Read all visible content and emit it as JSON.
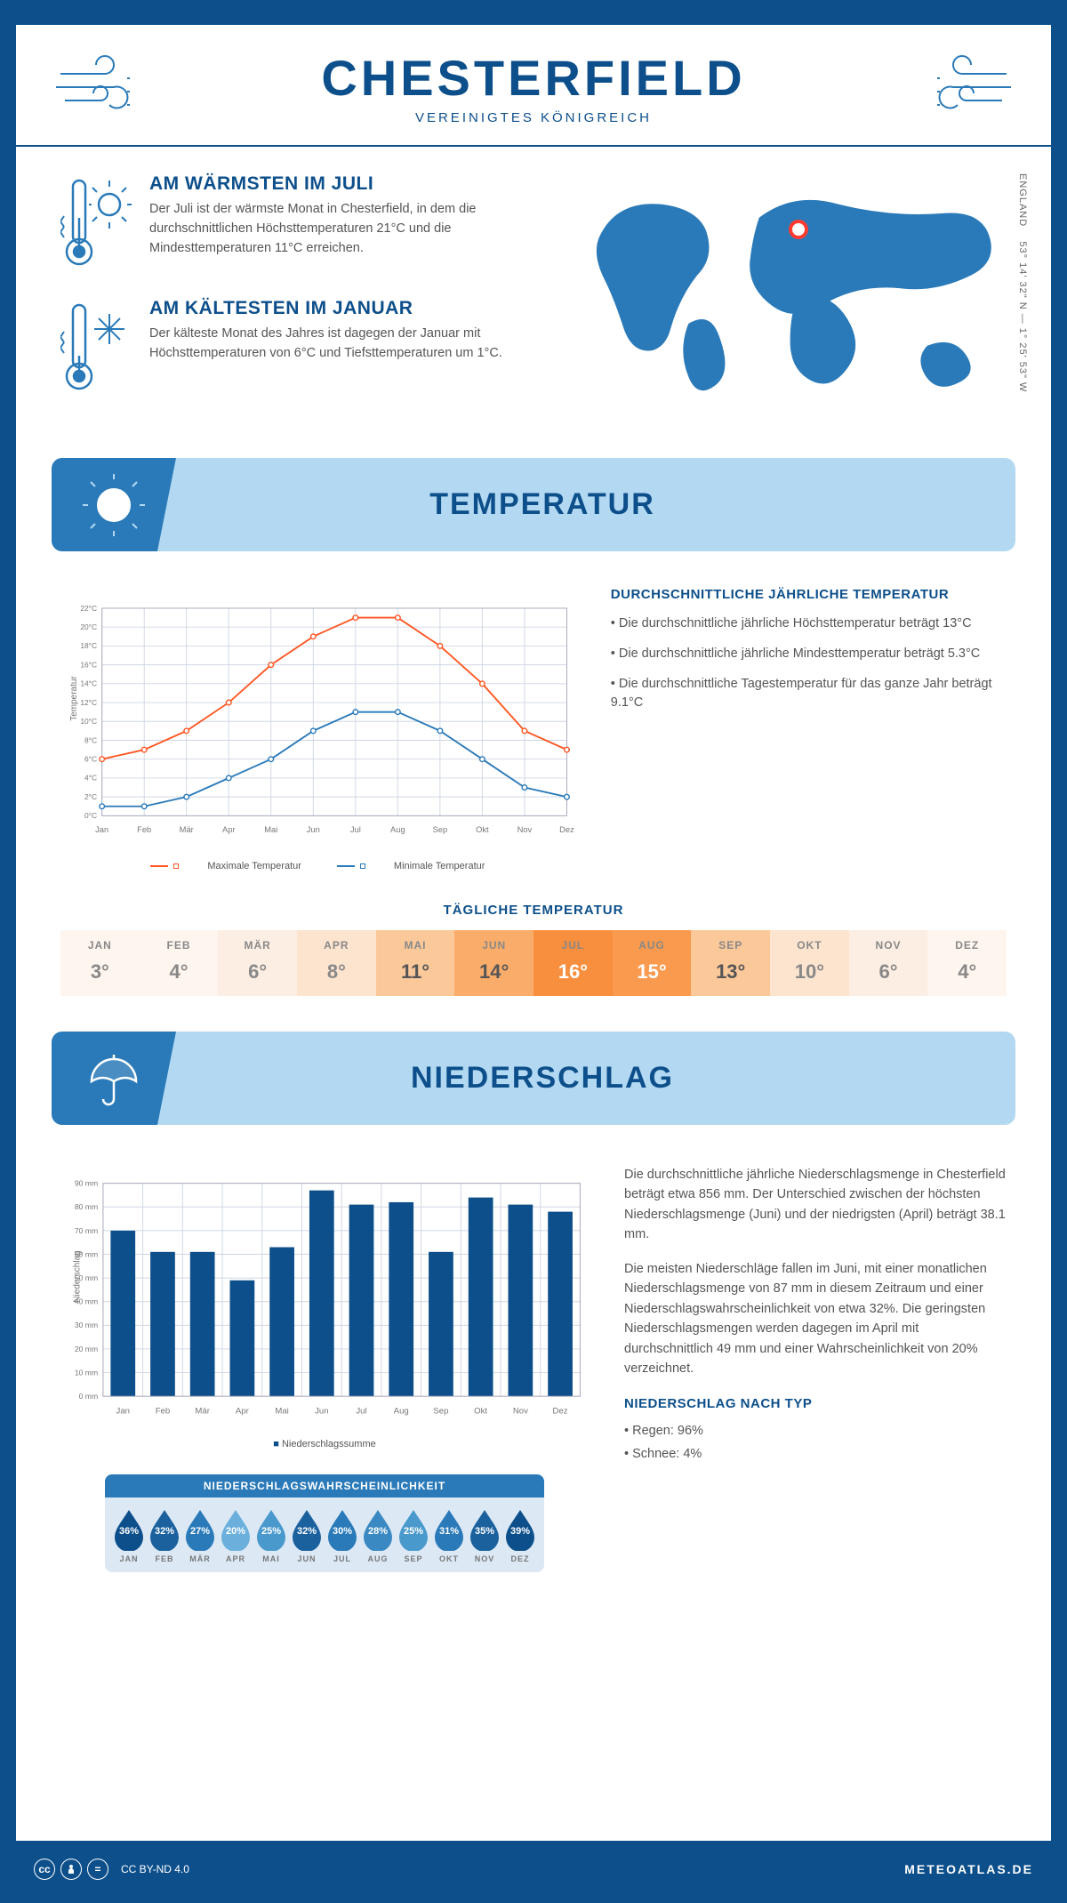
{
  "header": {
    "title": "CHESTERFIELD",
    "subtitle": "VEREINIGTES KÖNIGREICH"
  },
  "coords": {
    "text": "53° 14' 32\" N — 1° 25' 53\" W",
    "region": "ENGLAND"
  },
  "facts": {
    "warm": {
      "title": "AM WÄRMSTEN IM JULI",
      "text": "Der Juli ist der wärmste Monat in Chesterfield, in dem die durchschnittlichen Höchsttemperaturen 21°C und die Mindesttemperaturen 11°C erreichen."
    },
    "cold": {
      "title": "AM KÄLTESTEN IM JANUAR",
      "text": "Der kälteste Monat des Jahres ist dagegen der Januar mit Höchsttemperaturen von 6°C und Tiefsttemperaturen um 1°C."
    }
  },
  "sections": {
    "temp": "TEMPERATUR",
    "precip": "NIEDERSCHLAG"
  },
  "months_short": [
    "Jan",
    "Feb",
    "Mär",
    "Apr",
    "Mai",
    "Jun",
    "Jul",
    "Aug",
    "Sep",
    "Okt",
    "Nov",
    "Dez"
  ],
  "months_caps": [
    "JAN",
    "FEB",
    "MÄR",
    "APR",
    "MAI",
    "JUN",
    "JUL",
    "AUG",
    "SEP",
    "OKT",
    "NOV",
    "DEZ"
  ],
  "temp_chart": {
    "type": "line",
    "y_label": "Temperatur",
    "ylim": [
      0,
      22
    ],
    "y_ticks": [
      0,
      2,
      4,
      6,
      8,
      10,
      12,
      14,
      16,
      18,
      20,
      22
    ],
    "y_tick_labels": [
      "0°C",
      "2°C",
      "4°C",
      "6°C",
      "8°C",
      "10°C",
      "12°C",
      "14°C",
      "16°C",
      "18°C",
      "20°C",
      "22°C"
    ],
    "max": {
      "label": "Maximale Temperatur",
      "color": "#ff5724",
      "values": [
        6,
        7,
        9,
        12,
        16,
        19,
        21,
        21,
        18,
        14,
        9,
        7
      ]
    },
    "min": {
      "label": "Minimale Temperatur",
      "color": "#2a7ab9",
      "values": [
        1,
        1,
        2,
        4,
        6,
        9,
        11,
        11,
        9,
        6,
        3,
        2
      ]
    },
    "grid_color": "#cfd6e4",
    "background": "#ffffff"
  },
  "temp_side": {
    "heading": "DURCHSCHNITTLICHE JÄHRLICHE TEMPERATUR",
    "p1": "• Die durchschnittliche jährliche Höchsttemperatur beträgt 13°C",
    "p2": "• Die durchschnittliche jährliche Mindesttemperatur beträgt 5.3°C",
    "p3": "• Die durchschnittliche Tagestemperatur für das ganze Jahr beträgt 9.1°C"
  },
  "daily_temp": {
    "title": "TÄGLICHE TEMPERATUR",
    "values": [
      "3°",
      "4°",
      "6°",
      "8°",
      "11°",
      "14°",
      "16°",
      "15°",
      "13°",
      "10°",
      "6°",
      "4°"
    ],
    "bg_colors": [
      "#fef5ee",
      "#fef5ee",
      "#fceee2",
      "#fce4cf",
      "#fbc89a",
      "#faad6b",
      "#f78f3e",
      "#f99a4e",
      "#fbc89a",
      "#fce4cf",
      "#fceee2",
      "#fef5ee"
    ],
    "text_colors": [
      "#888",
      "#888",
      "#888",
      "#888",
      "#555",
      "#555",
      "#fff",
      "#fff",
      "#555",
      "#888",
      "#888",
      "#888"
    ]
  },
  "precip_chart": {
    "type": "bar",
    "y_label": "Niederschlag",
    "ylim": [
      0,
      90
    ],
    "y_ticks": [
      0,
      10,
      20,
      30,
      40,
      50,
      60,
      70,
      80,
      90
    ],
    "y_tick_labels": [
      "0 mm",
      "10 mm",
      "20 mm",
      "30 mm",
      "40 mm",
      "50 mm",
      "60 mm",
      "70 mm",
      "80 mm",
      "90 mm"
    ],
    "values": [
      70,
      61,
      61,
      49,
      63,
      87,
      81,
      82,
      61,
      84,
      81,
      78
    ],
    "bar_color": "#0d4f8b",
    "legend": "Niederschlagssumme",
    "grid_color": "#cfd6e4"
  },
  "precip_side": {
    "p1": "Die durchschnittliche jährliche Niederschlagsmenge in Chesterfield beträgt etwa 856 mm. Der Unterschied zwischen der höchsten Niederschlagsmenge (Juni) und der niedrigsten (April) beträgt 38.1 mm.",
    "p2": "Die meisten Niederschläge fallen im Juni, mit einer monatlichen Niederschlagsmenge von 87 mm in diesem Zeitraum und einer Niederschlagswahrscheinlichkeit von etwa 32%. Die geringsten Niederschlagsmengen werden dagegen im April mit durchschnittlich 49 mm und einer Wahrscheinlichkeit von 20% verzeichnet.",
    "type_heading": "NIEDERSCHLAG NACH TYP",
    "type1": "• Regen: 96%",
    "type2": "• Schnee: 4%"
  },
  "prob": {
    "heading": "NIEDERSCHLAGSWAHRSCHEINLICHKEIT",
    "values": [
      "36%",
      "32%",
      "27%",
      "20%",
      "25%",
      "32%",
      "30%",
      "28%",
      "25%",
      "31%",
      "35%",
      "39%"
    ],
    "colors": [
      "#0d4f8b",
      "#1b619e",
      "#2a7ab9",
      "#6bb0dc",
      "#4a99cd",
      "#1b619e",
      "#2a7ab9",
      "#3a89c2",
      "#4a99cd",
      "#2a7ab9",
      "#1b619e",
      "#0d4f8b"
    ]
  },
  "footer": {
    "license": "CC BY-ND 4.0",
    "site": "METEOATLAS.DE"
  }
}
